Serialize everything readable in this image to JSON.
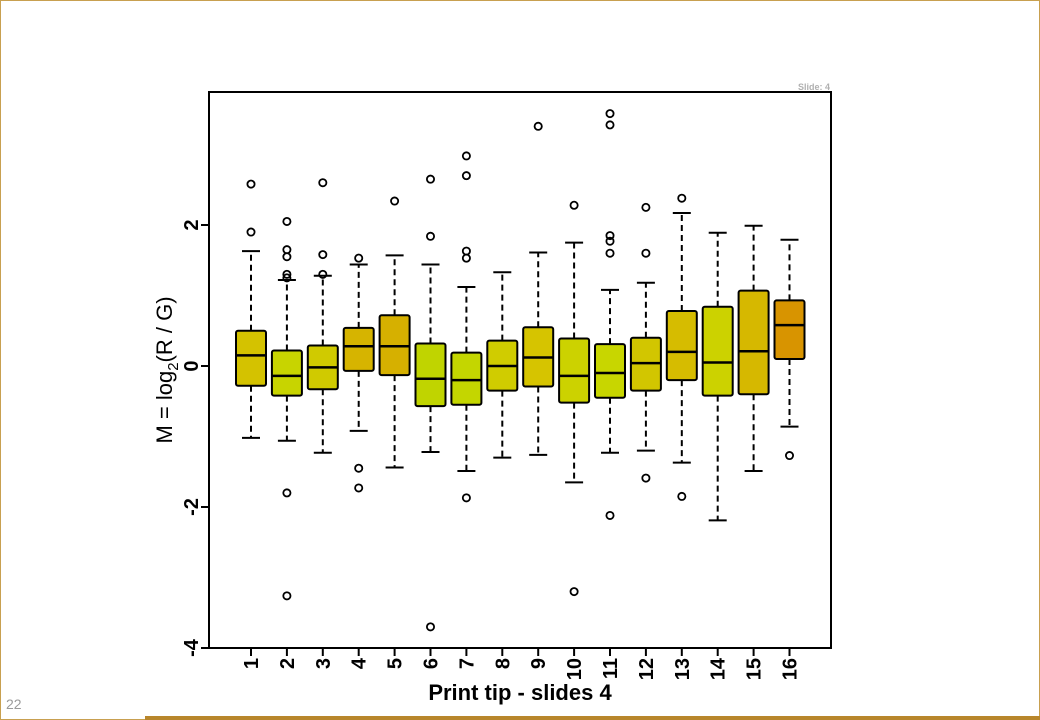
{
  "slide_number": "22",
  "chart_data": {
    "type": "boxplot",
    "corner_tag": "Slide: 4",
    "xlabel": "Print tip - slides 4",
    "ylabel": {
      "prefix": "M = log",
      "subscript": "2",
      "suffix": "(R / G)"
    },
    "ylim": [
      -4,
      4
    ],
    "yticks": [
      -4,
      -2,
      0,
      2
    ],
    "categories": [
      "1",
      "2",
      "3",
      "4",
      "5",
      "6",
      "7",
      "8",
      "9",
      "10",
      "11",
      "12",
      "13",
      "14",
      "15",
      "16"
    ],
    "colors": {
      "box_fills": [
        "#d4c200",
        "#c8d400",
        "#d0ca00",
        "#d6b400",
        "#d6b000",
        "#c0d400",
        "#c4d600",
        "#d0cc00",
        "#d6c400",
        "#ccd200",
        "#c8d600",
        "#d2c600",
        "#d6bc00",
        "#ccd200",
        "#d6b800",
        "#d89400"
      ],
      "frame": "#c8a050",
      "bottom_bar": "#b8862b"
    },
    "boxes": [
      {
        "whisker_low": -1.02,
        "q1": -0.28,
        "median": 0.15,
        "q3": 0.5,
        "whisker_high": 1.63,
        "outliers": [
          1.9,
          2.58
        ]
      },
      {
        "whisker_low": -1.06,
        "q1": -0.42,
        "median": -0.14,
        "q3": 0.22,
        "whisker_high": 1.22,
        "outliers": [
          -3.26,
          -1.8,
          1.25,
          1.3,
          1.55,
          1.65,
          2.05
        ]
      },
      {
        "whisker_low": -1.23,
        "q1": -0.33,
        "median": -0.02,
        "q3": 0.29,
        "whisker_high": 1.28,
        "outliers": [
          1.3,
          1.58,
          2.6
        ]
      },
      {
        "whisker_low": -0.92,
        "q1": -0.07,
        "median": 0.28,
        "q3": 0.54,
        "whisker_high": 1.44,
        "outliers": [
          -1.73,
          -1.45,
          1.53
        ]
      },
      {
        "whisker_low": -1.44,
        "q1": -0.13,
        "median": 0.28,
        "q3": 0.72,
        "whisker_high": 1.57,
        "outliers": [
          2.34
        ]
      },
      {
        "whisker_low": -1.22,
        "q1": -0.57,
        "median": -0.18,
        "q3": 0.32,
        "whisker_high": 1.44,
        "outliers": [
          -3.7,
          1.84,
          2.65
        ]
      },
      {
        "whisker_low": -1.49,
        "q1": -0.55,
        "median": -0.2,
        "q3": 0.19,
        "whisker_high": 1.12,
        "outliers": [
          -1.87,
          1.53,
          1.63,
          2.7,
          2.98
        ]
      },
      {
        "whisker_low": -1.3,
        "q1": -0.35,
        "median": 0.0,
        "q3": 0.36,
        "whisker_high": 1.33,
        "outliers": []
      },
      {
        "whisker_low": -1.26,
        "q1": -0.29,
        "median": 0.12,
        "q3": 0.55,
        "whisker_high": 1.61,
        "outliers": [
          3.4
        ]
      },
      {
        "whisker_low": -1.65,
        "q1": -0.52,
        "median": -0.14,
        "q3": 0.39,
        "whisker_high": 1.75,
        "outliers": [
          -3.2,
          2.28
        ]
      },
      {
        "whisker_low": -1.23,
        "q1": -0.45,
        "median": -0.1,
        "q3": 0.31,
        "whisker_high": 1.08,
        "outliers": [
          -2.12,
          1.6,
          1.77,
          1.85,
          3.42,
          3.58
        ]
      },
      {
        "whisker_low": -1.2,
        "q1": -0.35,
        "median": 0.04,
        "q3": 0.4,
        "whisker_high": 1.18,
        "outliers": [
          -1.59,
          1.6,
          2.25
        ]
      },
      {
        "whisker_low": -1.37,
        "q1": -0.2,
        "median": 0.2,
        "q3": 0.78,
        "whisker_high": 2.17,
        "outliers": [
          -1.85,
          2.38
        ]
      },
      {
        "whisker_low": -2.19,
        "q1": -0.42,
        "median": 0.05,
        "q3": 0.84,
        "whisker_high": 1.89,
        "outliers": []
      },
      {
        "whisker_low": -1.49,
        "q1": -0.4,
        "median": 0.21,
        "q3": 1.07,
        "whisker_high": 1.99,
        "outliers": []
      },
      {
        "whisker_low": -0.86,
        "q1": 0.1,
        "median": 0.58,
        "q3": 0.93,
        "whisker_high": 1.79,
        "outliers": [
          -1.27
        ]
      }
    ]
  }
}
